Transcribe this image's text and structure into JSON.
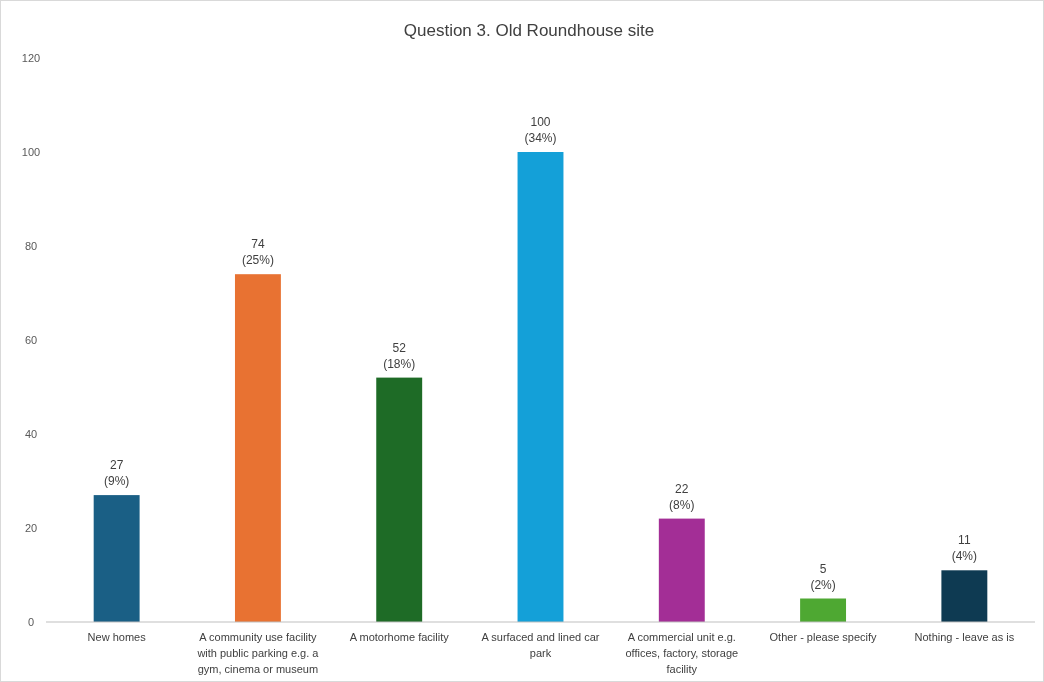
{
  "chart_data": {
    "type": "bar",
    "title": "Question 3. Old Roundhouse site",
    "categories": [
      "New homes",
      "A community use facility with public parking e.g. a gym, cinema or museum",
      "A motorhome facility",
      "A surfaced and lined car park",
      "A commercial unit e.g. offices, factory, storage facility",
      "Other - please specify",
      "Nothing - leave as is"
    ],
    "values": [
      27,
      74,
      52,
      100,
      22,
      5,
      11
    ],
    "colors": [
      "#1a5f85",
      "#e87232",
      "#1e6b26",
      "#14a0d8",
      "#a32e96",
      "#4ea832",
      "#0e3a52"
    ],
    "value_labels": [
      "27\n(9%)",
      "74\n(25%)",
      "52\n(18%)",
      "100\n(34%)",
      "22\n(8%)",
      "5\n(2%)",
      "11\n(4%)"
    ],
    "ylim": [
      0,
      120
    ],
    "yticks": [
      0,
      20,
      40,
      60,
      80,
      100,
      120
    ],
    "grid": false
  }
}
